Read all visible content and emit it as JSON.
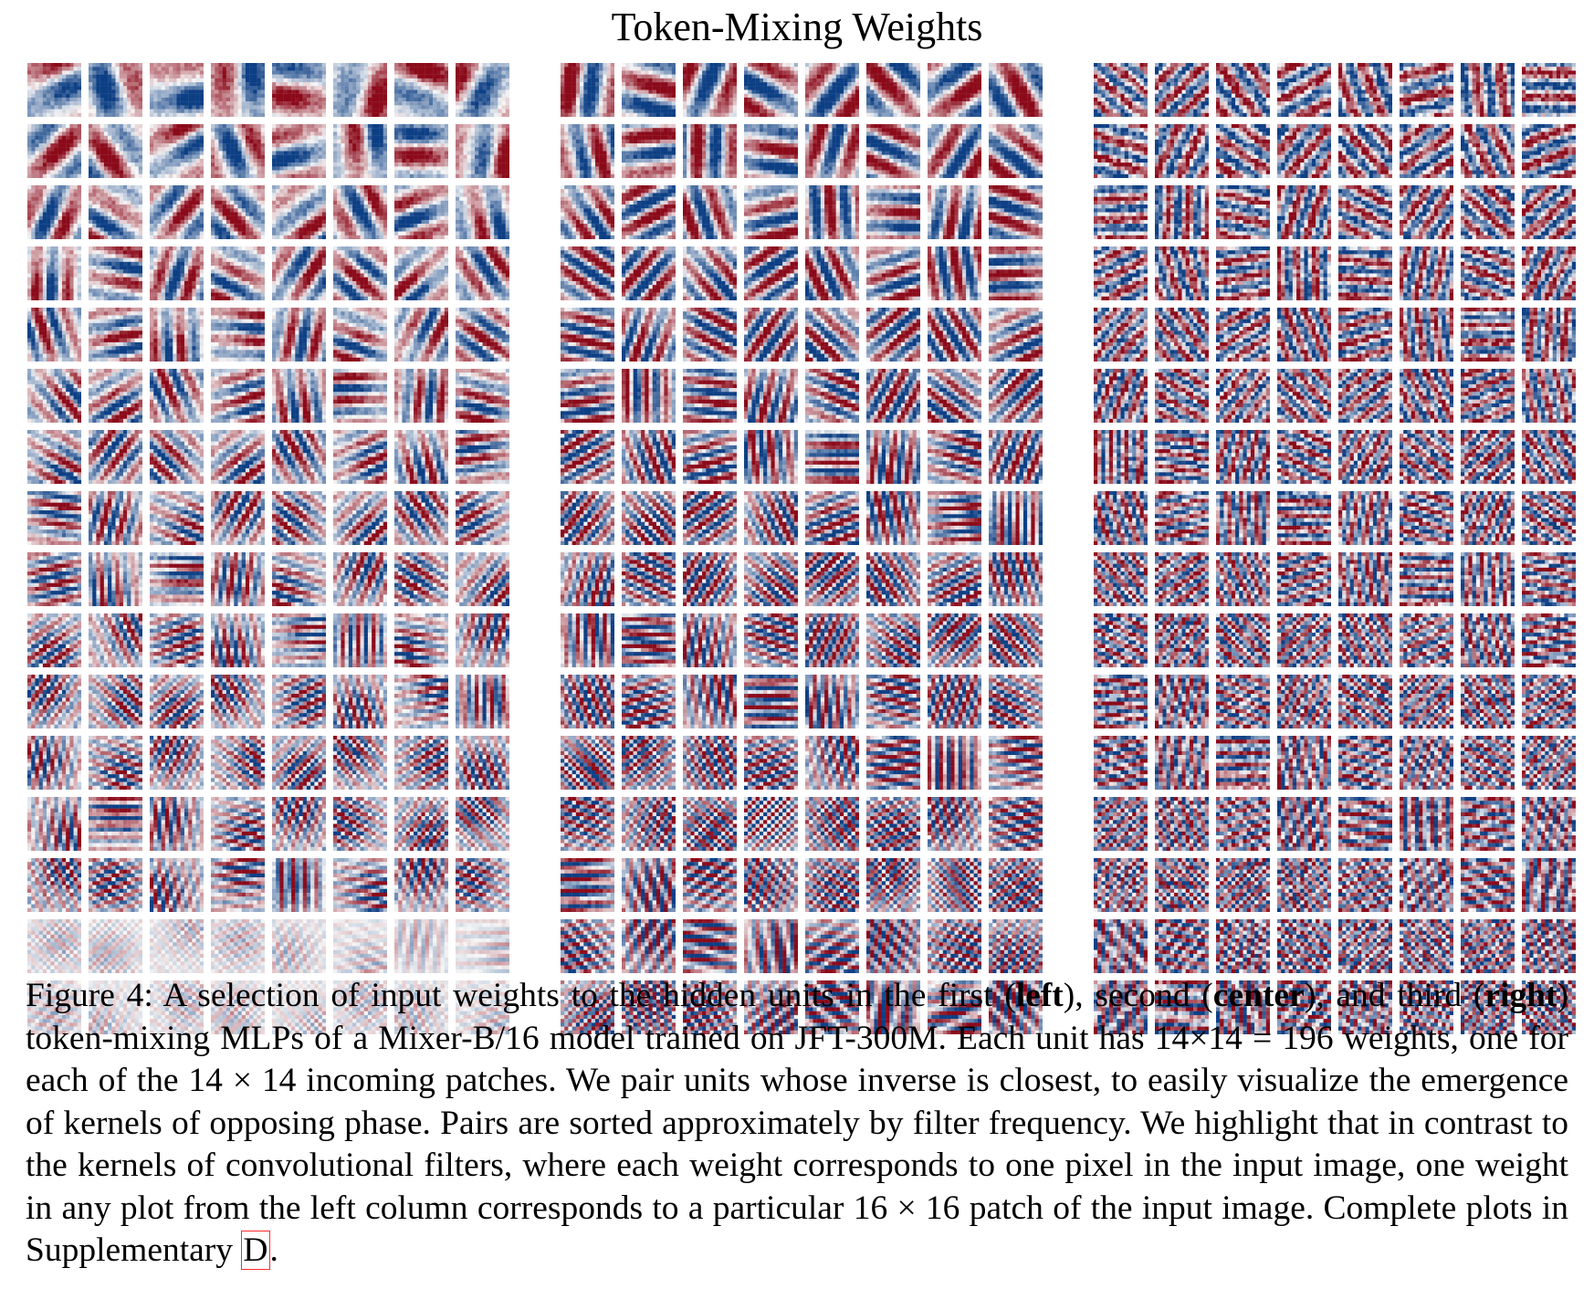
{
  "figure": {
    "title": "Token-Mixing Weights",
    "panels": [
      {
        "id": "left",
        "rows": 16,
        "cols": 8
      },
      {
        "id": "center",
        "rows": 16,
        "cols": 8
      },
      {
        "id": "right",
        "rows": 16,
        "cols": 8
      }
    ],
    "colors": {
      "positive": "#8b0a1a",
      "negative": "#0d3f84",
      "neutral": "#f7f7f7"
    }
  },
  "caption": {
    "p1": "Figure 4: A selection of input weights to the hidden units in the first (",
    "b1": "left",
    "p2": "), second (",
    "b2": "center",
    "p3": "), and third (",
    "b3": "right",
    "p4": ") token-mixing MLPs of a Mixer-B/16 model trained on JFT-300M. Each unit has 14×14 = 196 weights, one for each of the 14 × 14 incoming patches. We pair units whose inverse is closest, to easily visualize the emergence of kernels of opposing phase. Pairs are sorted approximately by filter frequency. We highlight that in contrast to the kernels of convolutional filters, where each weight corresponds to one pixel in the input image, one weight in any plot from the left column corresponds to a particular 16 × 16 patch of the input image. Complete plots in Supplementary ",
    "ref": "D",
    "p5": "."
  }
}
